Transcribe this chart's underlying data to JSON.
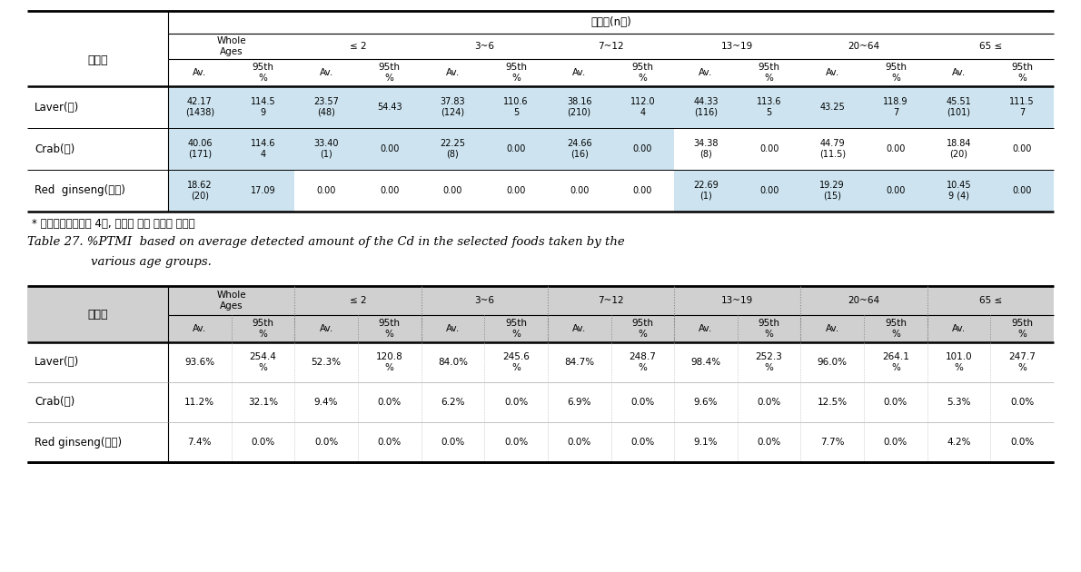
{
  "table1": {
    "title_row": "섭취량(n수)",
    "col_groups": [
      "Whole\nAges",
      "≤ 2",
      "3~6",
      "7~12",
      "13~19",
      "20~64",
      "65 ≤"
    ],
    "row_label_header": "식품명",
    "rows": [
      {
        "name": "Laver(김)",
        "data": [
          "42.17\n(1438)",
          "114.5\n9",
          "23.57\n(48)",
          "54.43",
          "37.83\n(124)",
          "110.6\n5",
          "38.16\n(210)",
          "112.0\n4",
          "44.33\n(116)",
          "113.6\n5",
          "43.25",
          "118.9\n7",
          "45.51\n(101)",
          "111.5\n7"
        ],
        "highlight_cols": [
          0,
          1,
          2,
          3,
          4,
          5,
          6,
          7,
          8,
          9,
          10,
          11,
          12,
          13
        ]
      },
      {
        "name": "Crab(게)",
        "data": [
          "40.06\n(171)",
          "114.6\n4",
          "33.40\n(1)",
          "0.00",
          "22.25\n(8)",
          "0.00",
          "24.66\n(16)",
          "0.00",
          "34.38\n(8)",
          "0.00",
          "44.79\n(11.5)",
          "0.00",
          "18.84\n(20)",
          "0.00"
        ],
        "highlight_cols": [
          0,
          1,
          2,
          3,
          4,
          5,
          6,
          7
        ]
      },
      {
        "name": "Red  ginseng(홍삼)",
        "data": [
          "18.62\n(20)",
          "17.09",
          "0.00",
          "0.00",
          "0.00",
          "0.00",
          "0.00",
          "0.00",
          "22.69\n(1)",
          "0.00",
          "19.29\n(15)",
          "0.00",
          "10.45\n9 (4)",
          "0.00"
        ],
        "highlight_cols": [
          0,
          1,
          8,
          9,
          10,
          11,
          12,
          13
        ]
      }
    ],
    "footnote": "* 국민건강영양조사 4기, 섭취자 중심 섭취량 자료임"
  },
  "table2": {
    "caption_line1": "Table 27. %PTMI  based on average detected amount of the Cd in the selected foods taken by the",
    "caption_line2": "various age groups.",
    "col_groups": [
      "Whole\nAges",
      "≤ 2",
      "3~6",
      "7~12",
      "13~19",
      "20~64",
      "65 ≤"
    ],
    "row_label_header": "식품명",
    "rows": [
      {
        "name": "Laver(김)",
        "data": [
          "93.6%",
          "254.4\n%",
          "52.3%",
          "120.8\n%",
          "84.0%",
          "245.6\n%",
          "84.7%",
          "248.7\n%",
          "98.4%",
          "252.3\n%",
          "96.0%",
          "264.1\n%",
          "101.0\n%",
          "247.7\n%"
        ]
      },
      {
        "name": "Crab(게)",
        "data": [
          "11.2%",
          "32.1%",
          "9.4%",
          "0.0%",
          "6.2%",
          "0.0%",
          "6.9%",
          "0.0%",
          "9.6%",
          "0.0%",
          "12.5%",
          "0.0%",
          "5.3%",
          "0.0%"
        ]
      },
      {
        "name": "Red ginseng(홍삼)",
        "data": [
          "7.4%",
          "0.0%",
          "0.0%",
          "0.0%",
          "0.0%",
          "0.0%",
          "0.0%",
          "0.0%",
          "9.1%",
          "0.0%",
          "7.7%",
          "0.0%",
          "4.2%",
          "0.0%"
        ]
      }
    ]
  },
  "bg_highlight": "#cde4f0",
  "bg_white": "#ffffff",
  "bg_gray": "#d0d0d0",
  "border_dark": "#000000",
  "border_light": "#aaaaaa"
}
